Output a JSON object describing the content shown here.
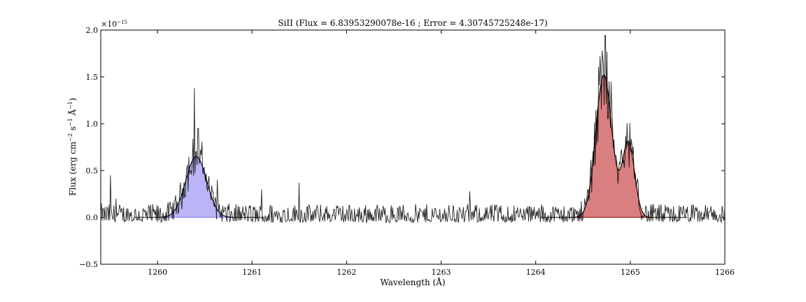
{
  "chart_data": {
    "type": "line",
    "title": "SiII (Flux = 6.83953290078e-16 ; Error = 4.30745725248e-17)",
    "xlabel": "Wavelength (Å)",
    "ylabel_parts": {
      "pre": "Flux (erg cm",
      "sup1": "−2",
      "mid": " s",
      "sup2": "−1",
      "mid2": " Å",
      "sup3": "−1",
      "post": ")"
    },
    "y_multiplier_base": "×10",
    "y_multiplier_exp": "−15",
    "xlim": [
      1259.4,
      1266.0
    ],
    "ylim": [
      -0.5,
      2.0
    ],
    "xticks": [
      1260,
      1261,
      1262,
      1263,
      1264,
      1265,
      1266
    ],
    "xtick_labels": [
      "1260",
      "1261",
      "1262",
      "1263",
      "1264",
      "1265",
      "1266"
    ],
    "yticks": [
      -0.5,
      0.0,
      0.5,
      1.0,
      1.5,
      2.0
    ],
    "ytick_labels": [
      "−0.5",
      "0.0",
      "0.5",
      "1.0",
      "1.5",
      "2.0"
    ],
    "grid": false,
    "colors": {
      "spectrum": "#000000",
      "blue_fill": "#9b96f2",
      "blue_edge": "#7a73e6",
      "red_fill": "#c94848",
      "red_edge": "#8b0000",
      "fit_line": "#000000"
    },
    "gaussian_components": [
      {
        "center": 1260.41,
        "amplitude": 0.65,
        "sigma": 0.11,
        "x_range": [
          1259.75,
          1261.12
        ],
        "color": "blue"
      },
      {
        "center": 1264.72,
        "amplitude": 1.52,
        "sigma": 0.085,
        "x_range": [
          1264.05,
          1265.6
        ],
        "color": "red"
      },
      {
        "center": 1264.98,
        "amplitude": 0.8,
        "sigma": 0.065,
        "x_range": [
          1264.05,
          1265.6
        ],
        "color": "red"
      }
    ],
    "spectrum_features": [
      {
        "x": 1259.41,
        "y": 0.15
      },
      {
        "x": 1259.5,
        "y": 0.45
      },
      {
        "x": 1259.56,
        "y": 0.2
      },
      {
        "x": 1260.39,
        "y": 1.38
      },
      {
        "x": 1260.43,
        "y": 0.95
      },
      {
        "x": 1260.63,
        "y": 0.4
      },
      {
        "x": 1261.1,
        "y": 0.3
      },
      {
        "x": 1261.5,
        "y": 0.37
      },
      {
        "x": 1263.3,
        "y": 0.28
      },
      {
        "x": 1264.68,
        "y": 1.72
      },
      {
        "x": 1264.7,
        "y": 1.78
      },
      {
        "x": 1264.74,
        "y": 1.94
      },
      {
        "x": 1264.8,
        "y": 1.45
      },
      {
        "x": 1264.98,
        "y": 0.8
      }
    ]
  }
}
